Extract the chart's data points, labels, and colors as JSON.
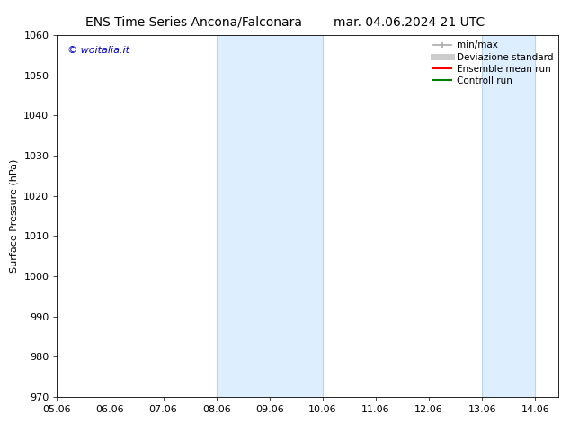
{
  "title_left": "ENS Time Series Ancona/Falconara",
  "title_right": "mar. 04.06.2024 21 UTC",
  "ylabel": "Surface Pressure (hPa)",
  "ylim": [
    970,
    1060
  ],
  "yticks": [
    970,
    980,
    990,
    1000,
    1010,
    1020,
    1030,
    1040,
    1050,
    1060
  ],
  "xtick_labels": [
    "05.06",
    "06.06",
    "07.06",
    "08.06",
    "09.06",
    "10.06",
    "11.06",
    "12.06",
    "13.06",
    "14.06"
  ],
  "xtick_positions": [
    5.06,
    6.06,
    7.06,
    8.06,
    9.06,
    10.06,
    11.06,
    12.06,
    13.06,
    14.06
  ],
  "xlim": [
    5.06,
    14.5
  ],
  "watermark": "© woitalia.it",
  "watermark_color": "#0000cc",
  "shaded_bands": [
    {
      "x_start": 8.06,
      "x_end": 10.06
    },
    {
      "x_start": 13.06,
      "x_end": 14.06
    }
  ],
  "band_color": "#ddeeff",
  "band_edge_color": "#b8d4ee",
  "background_color": "#ffffff",
  "legend_items": [
    {
      "label": "min/max",
      "color": "#aaaaaa",
      "lw": 1.2
    },
    {
      "label": "Deviazione standard",
      "color": "#cccccc",
      "lw": 5
    },
    {
      "label": "Ensemble mean run",
      "color": "#ff0000",
      "lw": 1.5
    },
    {
      "label": "Controll run",
      "color": "#008000",
      "lw": 1.5
    }
  ],
  "title_fontsize": 10,
  "tick_fontsize": 8,
  "ylabel_fontsize": 8,
  "legend_fontsize": 7.5
}
